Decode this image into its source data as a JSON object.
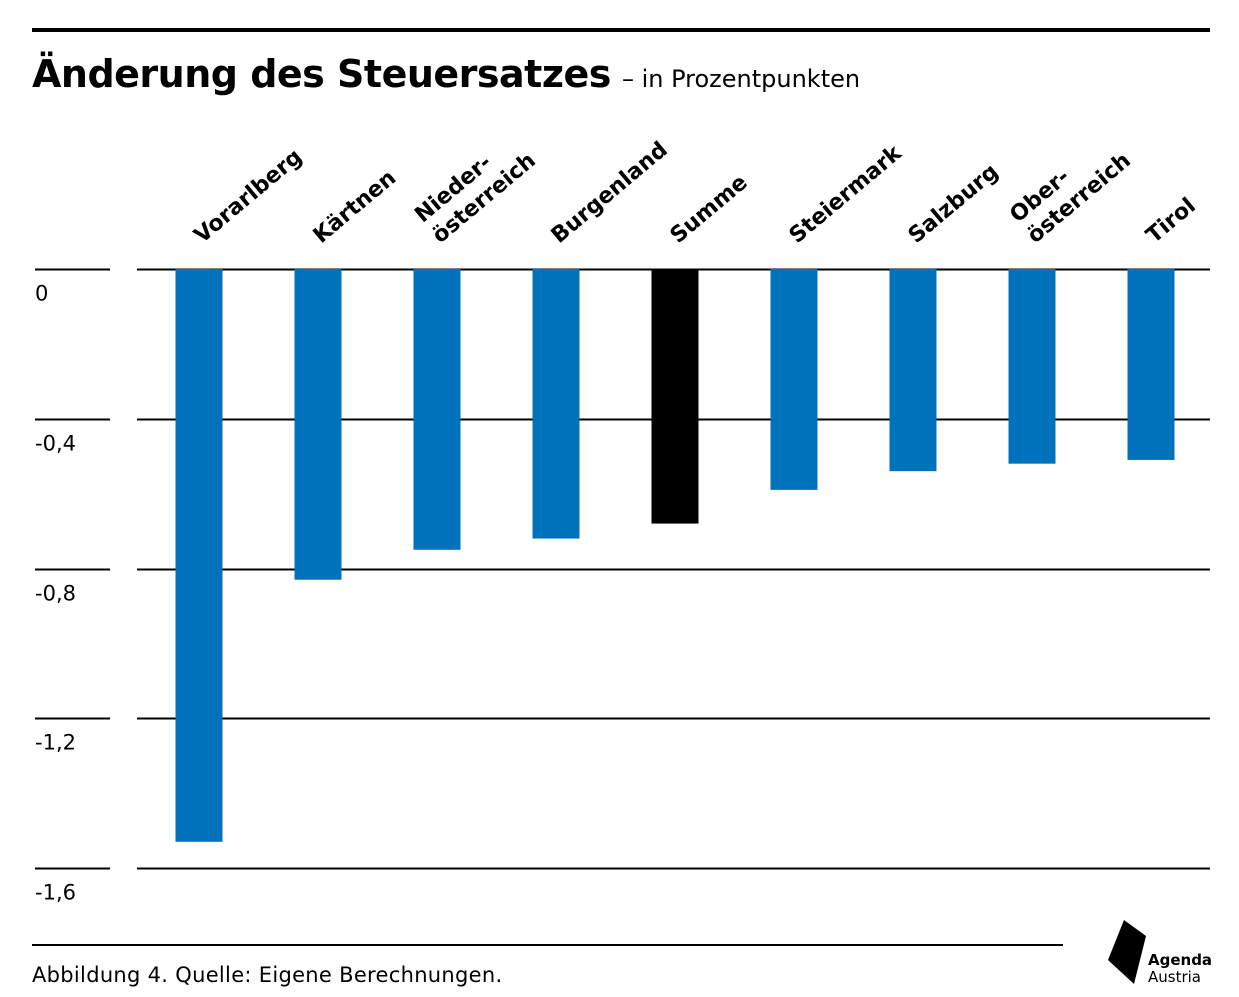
{
  "title": "Änderung des Steuersatzes",
  "subtitle": "– in Prozentpunkten",
  "caption": "Abbildung 4. Quelle: Eigene Berechnungen.",
  "logo": {
    "line1": "Agenda",
    "line2": "Austria"
  },
  "colors": {
    "bar": "#0072bc",
    "highlight": "#000000",
    "grid": "#000000"
  },
  "chart_data": {
    "type": "bar",
    "categories": [
      [
        "Vorarlberg"
      ],
      [
        "Kärtnen"
      ],
      [
        "Nieder-",
        "österreich"
      ],
      [
        "Burgenland"
      ],
      [
        "Summe"
      ],
      [
        "Steiermark"
      ],
      [
        "Salzburg"
      ],
      [
        "Ober-",
        "österreich"
      ],
      [
        "Tirol"
      ]
    ],
    "values": [
      -1.53,
      -0.83,
      -0.75,
      -0.72,
      -0.68,
      -0.59,
      -0.54,
      -0.52,
      -0.51
    ],
    "highlight_index": 4,
    "yticks": [
      0,
      -0.4,
      -0.8,
      -1.2,
      -1.6
    ],
    "ytick_labels": [
      "0",
      "-0,4",
      "-0,8",
      "-1,2",
      "-1,6"
    ],
    "ylim": [
      -1.6,
      0
    ],
    "xlabel": "",
    "ylabel": "",
    "grid": true,
    "category_label_position": "top"
  }
}
